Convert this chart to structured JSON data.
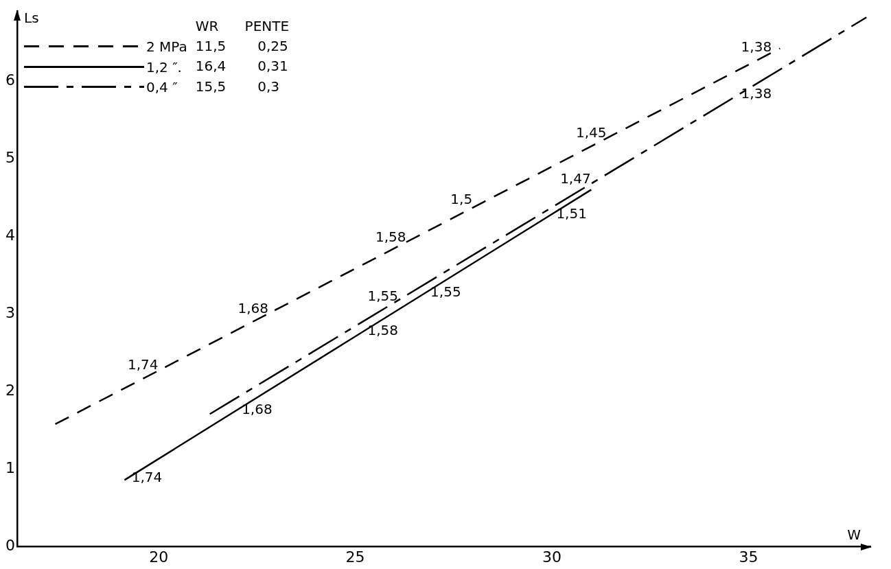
{
  "chart_data": {
    "type": "line",
    "xlabel": "W",
    "ylabel": "Ls",
    "xlim": [
      16.4,
      38.1
    ],
    "ylim": [
      0,
      6.9
    ],
    "xticks": [
      20,
      25,
      30,
      35
    ],
    "yticks": [
      0,
      1,
      2,
      3,
      4,
      5,
      6
    ],
    "legend": "top left",
    "series": [
      {
        "name": "2 MPa",
        "color": "#000000",
        "line_style": "dashed",
        "x": [
          17.37,
          35.8
        ],
        "values": [
          1.58,
          6.42
        ]
      },
      {
        "name": "1,2 ″.",
        "color": "#000000",
        "line_style": "solid",
        "x": [
          19.13,
          31.0
        ],
        "values": [
          0.86,
          4.6
        ]
      },
      {
        "name": "0,4 ″",
        "color": "#000000",
        "line_style": "dashdot",
        "x": [
          21.3,
          38.0
        ],
        "values": [
          1.71,
          6.82
        ]
      }
    ],
    "legend_title": "WR      PENTE",
    "annotations": [
      "11,5",
      "0,25",
      "16,4",
      "0,31",
      "15,5",
      "0,3",
      {
        "text": "1,74",
        "x": 19.6,
        "y": 2.17
      },
      {
        "text": "1,68",
        "x": 22.4,
        "y": 2.9
      },
      {
        "text": "1,58",
        "x": 25.9,
        "y": 3.82
      },
      {
        "text": "1,5",
        "x": 27.7,
        "y": 4.3
      },
      {
        "text": "1,45",
        "x": 31.0,
        "y": 5.16
      },
      {
        "text": "1,38",
        "x": 35.2,
        "y": 6.27
      },
      {
        "text": "1,74",
        "x": 19.7,
        "y": 1.04
      },
      {
        "text": "1,68",
        "x": 22.5,
        "y": 1.92
      },
      {
        "text": "1,58",
        "x": 25.7,
        "y": 2.93
      },
      {
        "text": "1,55",
        "x": 27.3,
        "y": 3.43
      },
      {
        "text": "1,51",
        "x": 30.5,
        "y": 4.44
      },
      {
        "text": "1,55",
        "x": 25.7,
        "y": 3.06
      },
      {
        "text": "1,47",
        "x": 30.6,
        "y": 4.57
      },
      {
        "text": "1,38",
        "x": 35.2,
        "y": 5.98
      }
    ]
  }
}
